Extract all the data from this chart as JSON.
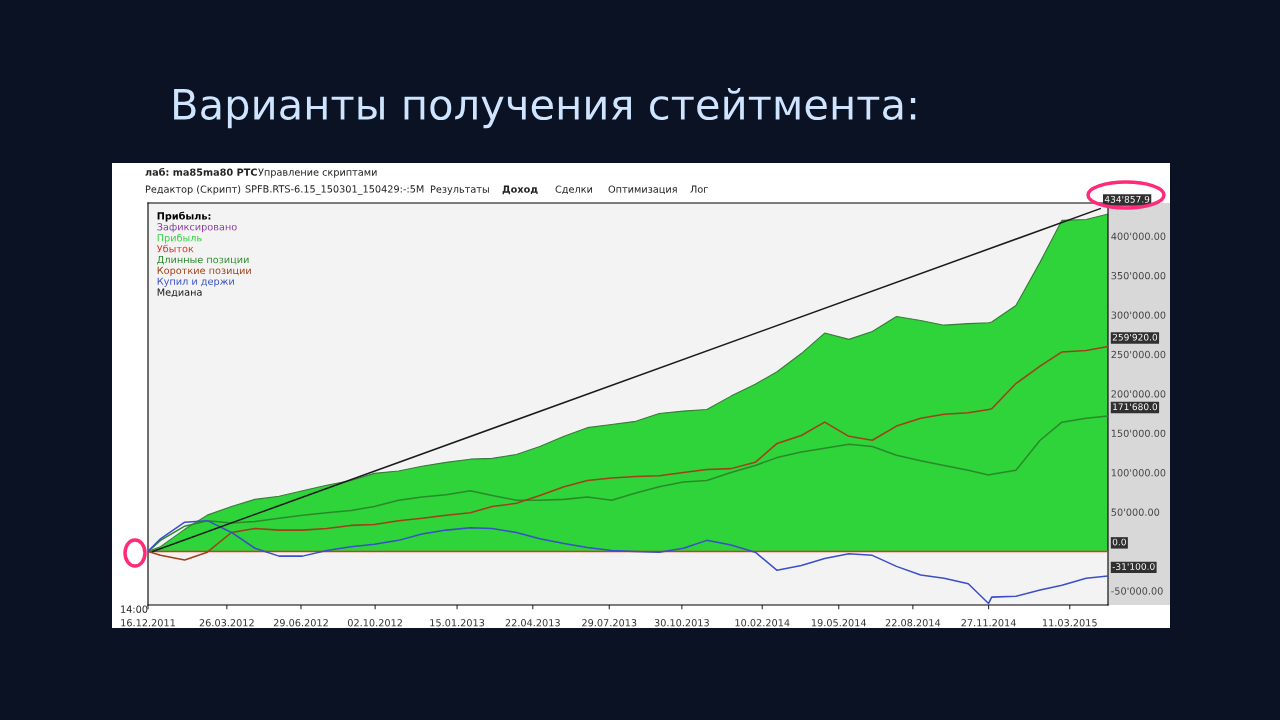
{
  "chart_data": {
    "type": "line",
    "title": "Варианты получения стейтмента:",
    "legend_title": "Прибыль:",
    "x": [
      "2011-12-16",
      "2012-01-01",
      "2012-02-01",
      "2012-03-01",
      "2012-04-01",
      "2012-05-01",
      "2012-06-01",
      "2012-07-01",
      "2012-08-01",
      "2012-09-01",
      "2012-10-01",
      "2012-11-01",
      "2012-12-01",
      "2013-01-01",
      "2013-02-01",
      "2013-03-01",
      "2013-04-01",
      "2013-05-01",
      "2013-06-01",
      "2013-07-01",
      "2013-08-01",
      "2013-09-01",
      "2013-10-01",
      "2013-11-01",
      "2013-12-01",
      "2014-01-01",
      "2014-02-01",
      "2014-03-01",
      "2014-04-01",
      "2014-05-01",
      "2014-06-01",
      "2014-07-01",
      "2014-08-01",
      "2014-09-01",
      "2014-10-01",
      "2014-11-01",
      "2014-11-27",
      "2014-12-01",
      "2015-01-01",
      "2015-02-01",
      "2015-03-01",
      "2015-04-01",
      "2015-04-29"
    ],
    "series": [
      {
        "name": "Зафиксировано",
        "color": "#8a3fa0",
        "values": [
          null,
          null,
          null,
          null,
          null,
          null,
          null,
          null,
          null,
          null,
          null,
          null,
          null,
          null,
          null,
          null,
          null,
          null,
          null,
          null,
          null,
          null,
          null,
          null,
          null,
          null,
          null,
          null,
          null,
          null,
          null,
          null,
          null,
          null,
          null,
          null,
          null,
          null,
          null,
          null,
          null,
          null,
          null
        ]
      },
      {
        "name": "Прибыль",
        "type": "area",
        "color": "#2fd33a",
        "values": [
          0,
          6000,
          28000,
          46000,
          57000,
          66000,
          70000,
          77000,
          84000,
          90000,
          99000,
          102000,
          108000,
          113000,
          117000,
          118000,
          123000,
          133000,
          146000,
          157000,
          161000,
          165000,
          175000,
          178000,
          180000,
          197000,
          212000,
          228000,
          251000,
          277000,
          269000,
          279000,
          298000,
          293000,
          287000,
          289000,
          290000,
          291000,
          312000,
          367000,
          420000,
          421000,
          428000
        ]
      },
      {
        "name": "Убыток",
        "color": "#e03020",
        "values": [
          0,
          0,
          0,
          0,
          0,
          0,
          0,
          0,
          0,
          0,
          0,
          0,
          0,
          0,
          0,
          0,
          0,
          0,
          0,
          0,
          0,
          0,
          0,
          0,
          0,
          0,
          0,
          0,
          0,
          0,
          0,
          0,
          0,
          0,
          0,
          0,
          0,
          0,
          0,
          0,
          0,
          0,
          0
        ]
      },
      {
        "name": "Длинные позиции",
        "color": "#2a8a2a",
        "values": [
          0,
          14000,
          32000,
          39000,
          36000,
          38000,
          42000,
          46000,
          49000,
          52000,
          57000,
          65000,
          69000,
          72000,
          77000,
          71000,
          65000,
          65000,
          66000,
          69000,
          65000,
          74000,
          82000,
          88000,
          90000,
          100000,
          109000,
          119000,
          126000,
          131000,
          136000,
          133000,
          122000,
          115000,
          109000,
          103000,
          97000,
          98000,
          103000,
          141000,
          164000,
          169000,
          171680
        ]
      },
      {
        "name": "Короткие позиции",
        "color": "#a0401a",
        "values": [
          0,
          -5000,
          -11000,
          -1000,
          24000,
          29000,
          27000,
          27000,
          29000,
          33000,
          34000,
          39000,
          42000,
          46000,
          49000,
          57000,
          61000,
          71000,
          82000,
          90000,
          93000,
          95000,
          96000,
          100000,
          104000,
          105000,
          113000,
          137000,
          147000,
          164000,
          146000,
          141000,
          159000,
          169000,
          174000,
          176000,
          180000,
          181000,
          213000,
          235000,
          253000,
          255000,
          259920
        ]
      },
      {
        "name": "Купил и держи",
        "color": "#3a4fc8",
        "values": [
          0,
          16000,
          37000,
          39000,
          24000,
          4000,
          -6000,
          -6000,
          1000,
          6000,
          9000,
          14000,
          22000,
          27000,
          30000,
          29000,
          24000,
          16000,
          10000,
          5000,
          1000,
          0,
          -1000,
          4000,
          14000,
          8000,
          -1000,
          -24000,
          -18000,
          -9000,
          -3000,
          -5000,
          -19000,
          -30000,
          -34000,
          -41000,
          -66000,
          -58000,
          -57000,
          -49000,
          -43000,
          -34000,
          -31100
        ]
      },
      {
        "name": "Медиана",
        "color": "#1a1a1a",
        "x": [
          "2011-12-22",
          "2015-04-19"
        ],
        "values": [
          0,
          434857.9
        ]
      }
    ],
    "xlim": [
      "2011-12-16",
      "2015-04-29"
    ],
    "xticks": [
      {
        "value": "2011-12-16",
        "label": "16.12.2011"
      },
      {
        "value": "2012-03-26",
        "label": "26.03.2012"
      },
      {
        "value": "2012-06-29",
        "label": "29.06.2012"
      },
      {
        "value": "2012-10-02",
        "label": "02.10.2012"
      },
      {
        "value": "2013-01-15",
        "label": "15.01.2013"
      },
      {
        "value": "2013-04-22",
        "label": "22.04.2013"
      },
      {
        "value": "2013-07-29",
        "label": "29.07.2013"
      },
      {
        "value": "2013-10-30",
        "label": "30.10.2013"
      },
      {
        "value": "2014-02-10",
        "label": "10.02.2014"
      },
      {
        "value": "2014-05-19",
        "label": "19.05.2014"
      },
      {
        "value": "2014-08-22",
        "label": "22.08.2014"
      },
      {
        "value": "2014-11-27",
        "label": "27.11.2014"
      },
      {
        "value": "2015-03-11",
        "label": "11.03.2015"
      }
    ],
    "ylim": [
      -68000,
      442000
    ],
    "yticks": [
      {
        "value": -50000,
        "label": "-50'000.00"
      },
      {
        "value": 50000,
        "label": "50'000.00"
      },
      {
        "value": 100000,
        "label": "100'000.00"
      },
      {
        "value": 150000,
        "label": "150'000.00"
      },
      {
        "value": 200000,
        "label": "200'000.00"
      },
      {
        "value": 250000,
        "label": "250'000.00"
      },
      {
        "value": 300000,
        "label": "300'000.00"
      },
      {
        "value": 350000,
        "label": "350'000.00"
      },
      {
        "value": 400000,
        "label": "400'000.00"
      }
    ],
    "legend": "top left",
    "grid": false,
    "annotations": [
      "лаб: ma85ma80 PTC",
      "Управление скриптами",
      "Редактор (Скрипт)",
      "SPFB.RTS-6.15_150301_150429:-:5M",
      "Результаты",
      "Доход",
      "Сделки",
      "Оптимизация",
      "Лог",
      "14:00",
      {
        "text": "434'857.9",
        "x": "2015-04-19",
        "y": 434857.9
      },
      {
        "text": "259'920.0",
        "x": "2015-04-29",
        "y": 259920
      },
      {
        "text": "171'680.0",
        "x": "2015-04-29",
        "y": 171680
      },
      {
        "text": "0.0",
        "x": "2015-04-29",
        "y": 0
      },
      {
        "text": "-31'100.0",
        "x": "2015-04-29",
        "y": -31100
      }
    ]
  }
}
